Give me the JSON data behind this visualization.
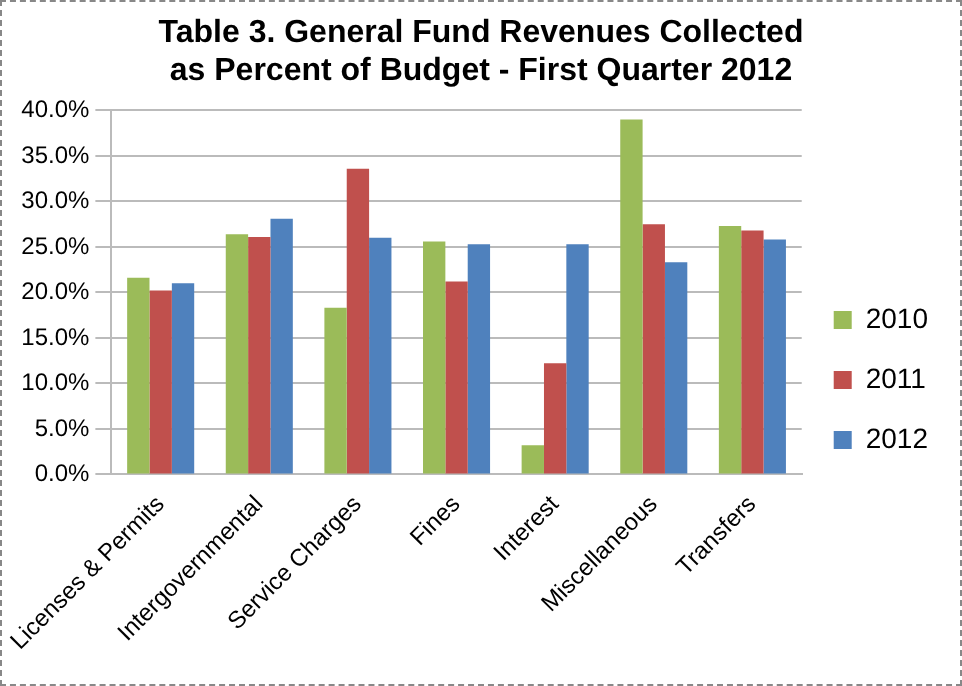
{
  "chart_data": {
    "type": "bar",
    "title": "Table 3. General Fund Revenues Collected as Percent of Budget - First Quarter 2012",
    "categories": [
      "Licenses & Permits",
      "Intergovernmental",
      "Service Charges",
      "Fines",
      "Interest",
      "Miscellaneous",
      "Transfers"
    ],
    "series": [
      {
        "name": "2010",
        "color": "#9bbb59",
        "values": [
          21.6,
          26.4,
          18.3,
          25.6,
          3.2,
          39.0,
          27.3
        ]
      },
      {
        "name": "2011",
        "color": "#c0504d",
        "values": [
          20.2,
          26.1,
          33.6,
          21.2,
          12.2,
          27.5,
          26.8
        ]
      },
      {
        "name": "2012",
        "color": "#4f81bd",
        "values": [
          21.0,
          28.1,
          26.0,
          25.3,
          25.3,
          23.3,
          25.8
        ]
      }
    ],
    "ylim": [
      0,
      40
    ],
    "yticks": [
      {
        "value": 0,
        "label": "0.0%"
      },
      {
        "value": 5,
        "label": "5.0%"
      },
      {
        "value": 10,
        "label": "10.0%"
      },
      {
        "value": 15,
        "label": "15.0%"
      },
      {
        "value": 20,
        "label": "20.0%"
      },
      {
        "value": 25,
        "label": "25.0%"
      },
      {
        "value": 30,
        "label": "30.0%"
      },
      {
        "value": 35,
        "label": "35.0%"
      },
      {
        "value": 40,
        "label": "40.0%"
      }
    ],
    "grid": "y",
    "legend": "right"
  }
}
